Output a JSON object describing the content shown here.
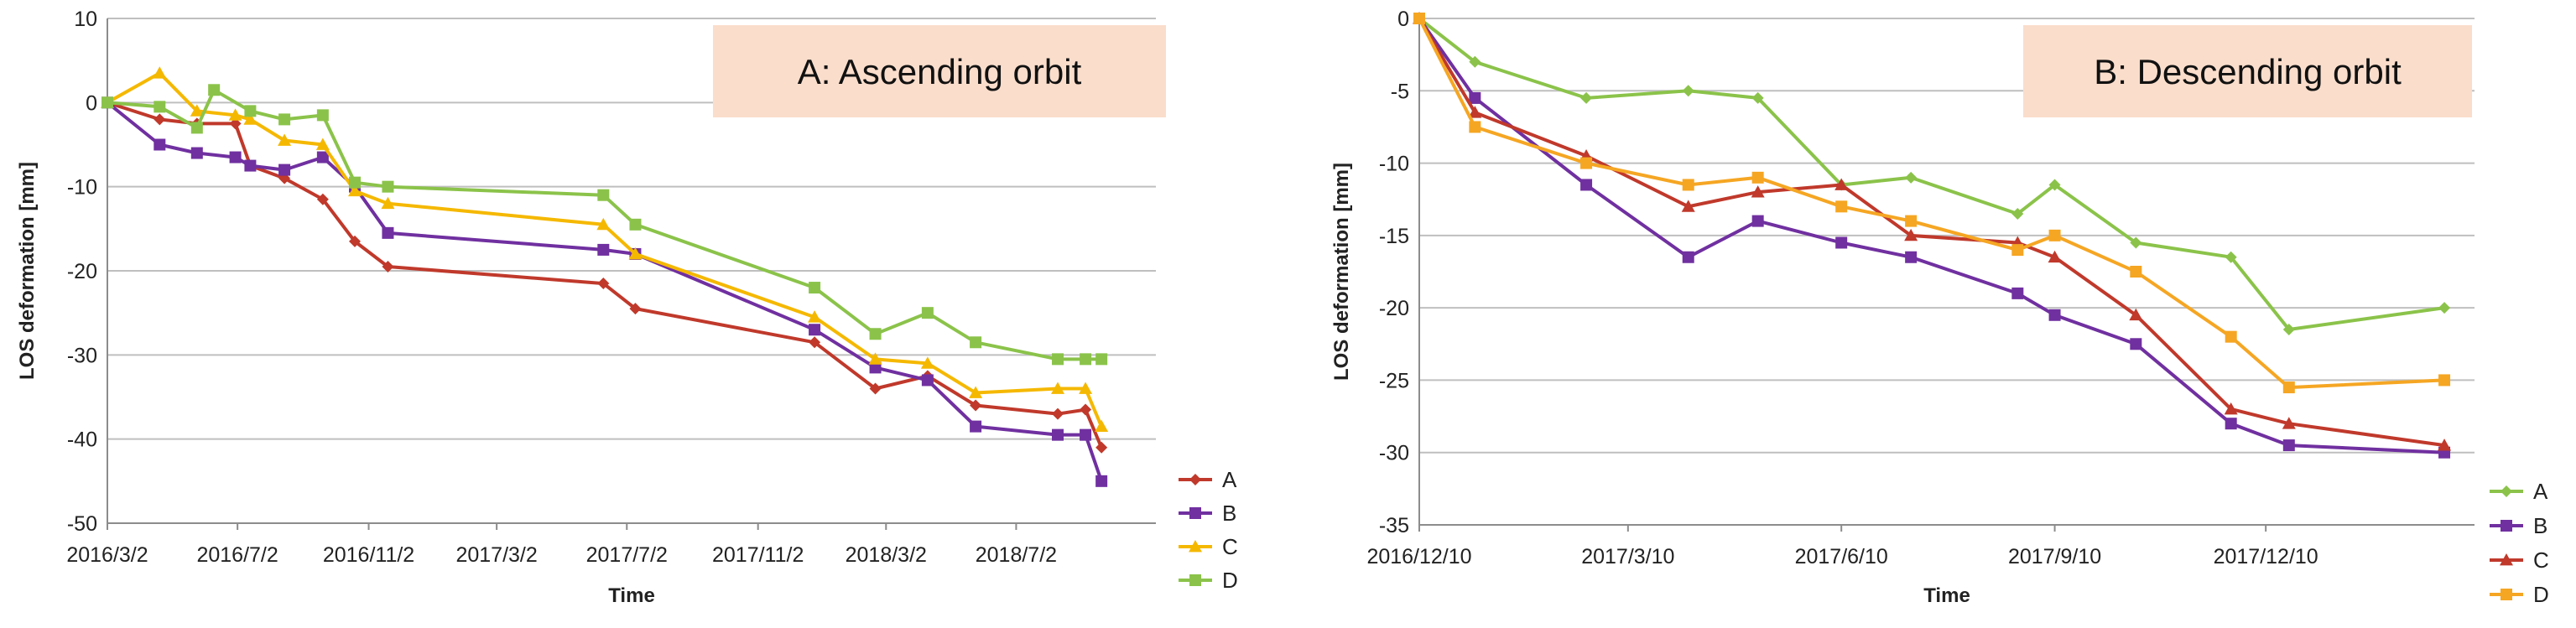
{
  "chart_data": [
    {
      "type": "line",
      "x_kind": "date",
      "annotation": "A:  Ascending orbit",
      "annotation_bg": "#FADDCB",
      "xlabel": "Time",
      "ylabel": "LOS deformation [mm]",
      "ylim": [
        -50,
        10
      ],
      "yticks": [
        10,
        0,
        -10,
        -20,
        -30,
        -40,
        -50
      ],
      "xlim": [
        "2016-03-02",
        "2018-11-10"
      ],
      "xticks": [
        {
          "date": "2016-03-02",
          "label": "2016/3/2"
        },
        {
          "date": "2016-07-02",
          "label": "2016/7/2"
        },
        {
          "date": "2016-11-02",
          "label": "2016/11/2"
        },
        {
          "date": "2017-03-02",
          "label": "2017/3/2"
        },
        {
          "date": "2017-07-02",
          "label": "2017/7/2"
        },
        {
          "date": "2017-11-02",
          "label": "2017/11/2"
        },
        {
          "date": "2018-03-02",
          "label": "2018/3/2"
        },
        {
          "date": "2018-07-02",
          "label": "2018/7/2"
        }
      ],
      "grid": true,
      "legend_position": "right",
      "series": [
        {
          "name": "A",
          "color": "#C0392B",
          "marker": "diamond",
          "points": [
            [
              "2016-03-02",
              0
            ],
            [
              "2016-04-20",
              -2
            ],
            [
              "2016-05-25",
              -2.5
            ],
            [
              "2016-06-30",
              -2.5
            ],
            [
              "2016-07-14",
              -7.5
            ],
            [
              "2016-08-15",
              -9
            ],
            [
              "2016-09-20",
              -11.5
            ],
            [
              "2016-10-20",
              -16.5
            ],
            [
              "2016-11-20",
              -19.5
            ],
            [
              "2017-06-10",
              -21.5
            ],
            [
              "2017-07-10",
              -24.5
            ],
            [
              "2017-12-25",
              -28.5
            ],
            [
              "2018-02-20",
              -34
            ],
            [
              "2018-04-10",
              -32.5
            ],
            [
              "2018-05-25",
              -36
            ],
            [
              "2018-08-10",
              -37
            ],
            [
              "2018-09-05",
              -36.5
            ],
            [
              "2018-09-20",
              -41
            ]
          ]
        },
        {
          "name": "B",
          "color": "#7030A0",
          "marker": "square",
          "points": [
            [
              "2016-03-02",
              0
            ],
            [
              "2016-04-20",
              -5
            ],
            [
              "2016-05-25",
              -6
            ],
            [
              "2016-06-30",
              -6.5
            ],
            [
              "2016-07-14",
              -7.5
            ],
            [
              "2016-08-15",
              -8
            ],
            [
              "2016-09-20",
              -6.5
            ],
            [
              "2016-10-20",
              -10
            ],
            [
              "2016-11-20",
              -15.5
            ],
            [
              "2017-06-10",
              -17.5
            ],
            [
              "2017-07-10",
              -18
            ],
            [
              "2017-12-25",
              -27
            ],
            [
              "2018-02-20",
              -31.5
            ],
            [
              "2018-04-10",
              -33
            ],
            [
              "2018-05-25",
              -38.5
            ],
            [
              "2018-08-10",
              -39.5
            ],
            [
              "2018-09-05",
              -39.5
            ],
            [
              "2018-09-20",
              -45
            ]
          ]
        },
        {
          "name": "C",
          "color": "#F5B800",
          "marker": "triangle",
          "points": [
            [
              "2016-03-02",
              0
            ],
            [
              "2016-04-20",
              3.5
            ],
            [
              "2016-05-25",
              -1
            ],
            [
              "2016-06-30",
              -1.5
            ],
            [
              "2016-07-14",
              -2
            ],
            [
              "2016-08-15",
              -4.5
            ],
            [
              "2016-09-20",
              -5
            ],
            [
              "2016-10-20",
              -10.5
            ],
            [
              "2016-11-20",
              -12
            ],
            [
              "2017-06-10",
              -14.5
            ],
            [
              "2017-07-10",
              -18
            ],
            [
              "2017-12-25",
              -25.5
            ],
            [
              "2018-02-20",
              -30.5
            ],
            [
              "2018-04-10",
              -31
            ],
            [
              "2018-05-25",
              -34.5
            ],
            [
              "2018-08-10",
              -34
            ],
            [
              "2018-09-05",
              -34
            ],
            [
              "2018-09-20",
              -38.5
            ]
          ]
        },
        {
          "name": "D",
          "color": "#8BC34A",
          "marker": "square",
          "points": [
            [
              "2016-03-02",
              0
            ],
            [
              "2016-04-20",
              -0.5
            ],
            [
              "2016-05-25",
              -3
            ],
            [
              "2016-06-10",
              1.5
            ],
            [
              "2016-07-14",
              -1
            ],
            [
              "2016-08-15",
              -2
            ],
            [
              "2016-09-20",
              -1.5
            ],
            [
              "2016-10-20",
              -9.5
            ],
            [
              "2016-11-20",
              -10
            ],
            [
              "2017-06-10",
              -11
            ],
            [
              "2017-07-10",
              -14.5
            ],
            [
              "2017-12-25",
              -22
            ],
            [
              "2018-02-20",
              -27.5
            ],
            [
              "2018-04-10",
              -25
            ],
            [
              "2018-05-25",
              -28.5
            ],
            [
              "2018-08-10",
              -30.5
            ],
            [
              "2018-09-05",
              -30.5
            ],
            [
              "2018-09-20",
              -30.5
            ]
          ]
        }
      ]
    },
    {
      "type": "line",
      "x_kind": "date",
      "annotation": "B:  Descending orbit",
      "annotation_bg": "#FADDCB",
      "xlabel": "Time",
      "ylabel": "LOS deformation [mm]",
      "ylim": [
        -35,
        0
      ],
      "yticks": [
        0,
        -5,
        -10,
        -15,
        -20,
        -25,
        -30,
        -35
      ],
      "xlim": [
        "2016-12-10",
        "2018-03-10"
      ],
      "xticks": [
        {
          "date": "2016-12-10",
          "label": "2016/12/10"
        },
        {
          "date": "2017-03-10",
          "label": "2017/3/10"
        },
        {
          "date": "2017-06-10",
          "label": "2017/6/10"
        },
        {
          "date": "2017-09-10",
          "label": "2017/9/10"
        },
        {
          "date": "2017-12-10",
          "label": "2017/12/10"
        }
      ],
      "grid": true,
      "legend_position": "right",
      "series": [
        {
          "name": "A",
          "color": "#8BC34A",
          "marker": "diamond",
          "points": [
            [
              "2016-12-10",
              0
            ],
            [
              "2017-01-03",
              -3
            ],
            [
              "2017-02-20",
              -5.5
            ],
            [
              "2017-04-05",
              -5
            ],
            [
              "2017-05-05",
              -5.5
            ],
            [
              "2017-06-10",
              -11.5
            ],
            [
              "2017-07-10",
              -11
            ],
            [
              "2017-08-25",
              -13.5
            ],
            [
              "2017-09-10",
              -11.5
            ],
            [
              "2017-10-15",
              -15.5
            ],
            [
              "2017-11-25",
              -16.5
            ],
            [
              "2017-12-20",
              -21.5
            ],
            [
              "2018-02-25",
              -20
            ]
          ]
        },
        {
          "name": "B",
          "color": "#7030A0",
          "marker": "square",
          "points": [
            [
              "2016-12-10",
              0
            ],
            [
              "2017-01-03",
              -5.5
            ],
            [
              "2017-02-20",
              -11.5
            ],
            [
              "2017-04-05",
              -16.5
            ],
            [
              "2017-05-05",
              -14
            ],
            [
              "2017-06-10",
              -15.5
            ],
            [
              "2017-07-10",
              -16.5
            ],
            [
              "2017-08-25",
              -19
            ],
            [
              "2017-09-10",
              -20.5
            ],
            [
              "2017-10-15",
              -22.5
            ],
            [
              "2017-11-25",
              -28
            ],
            [
              "2017-12-20",
              -29.5
            ],
            [
              "2018-02-25",
              -30
            ]
          ]
        },
        {
          "name": "C",
          "color": "#C0392B",
          "marker": "triangle",
          "points": [
            [
              "2016-12-10",
              0
            ],
            [
              "2017-01-03",
              -6.5
            ],
            [
              "2017-02-20",
              -9.5
            ],
            [
              "2017-04-05",
              -13
            ],
            [
              "2017-05-05",
              -12
            ],
            [
              "2017-06-10",
              -11.5
            ],
            [
              "2017-07-10",
              -15
            ],
            [
              "2017-08-25",
              -15.5
            ],
            [
              "2017-09-10",
              -16.5
            ],
            [
              "2017-10-15",
              -20.5
            ],
            [
              "2017-11-25",
              -27
            ],
            [
              "2017-12-20",
              -28
            ],
            [
              "2018-02-25",
              -29.5
            ]
          ]
        },
        {
          "name": "D",
          "color": "#F5A623",
          "marker": "square",
          "points": [
            [
              "2016-12-10",
              0
            ],
            [
              "2017-01-03",
              -7.5
            ],
            [
              "2017-02-20",
              -10
            ],
            [
              "2017-04-05",
              -11.5
            ],
            [
              "2017-05-05",
              -11
            ],
            [
              "2017-06-10",
              -13
            ],
            [
              "2017-07-10",
              -14
            ],
            [
              "2017-08-25",
              -16
            ],
            [
              "2017-09-10",
              -15
            ],
            [
              "2017-10-15",
              -17.5
            ],
            [
              "2017-11-25",
              -22
            ],
            [
              "2017-12-20",
              -25.5
            ],
            [
              "2018-02-25",
              -25
            ]
          ]
        }
      ]
    }
  ]
}
